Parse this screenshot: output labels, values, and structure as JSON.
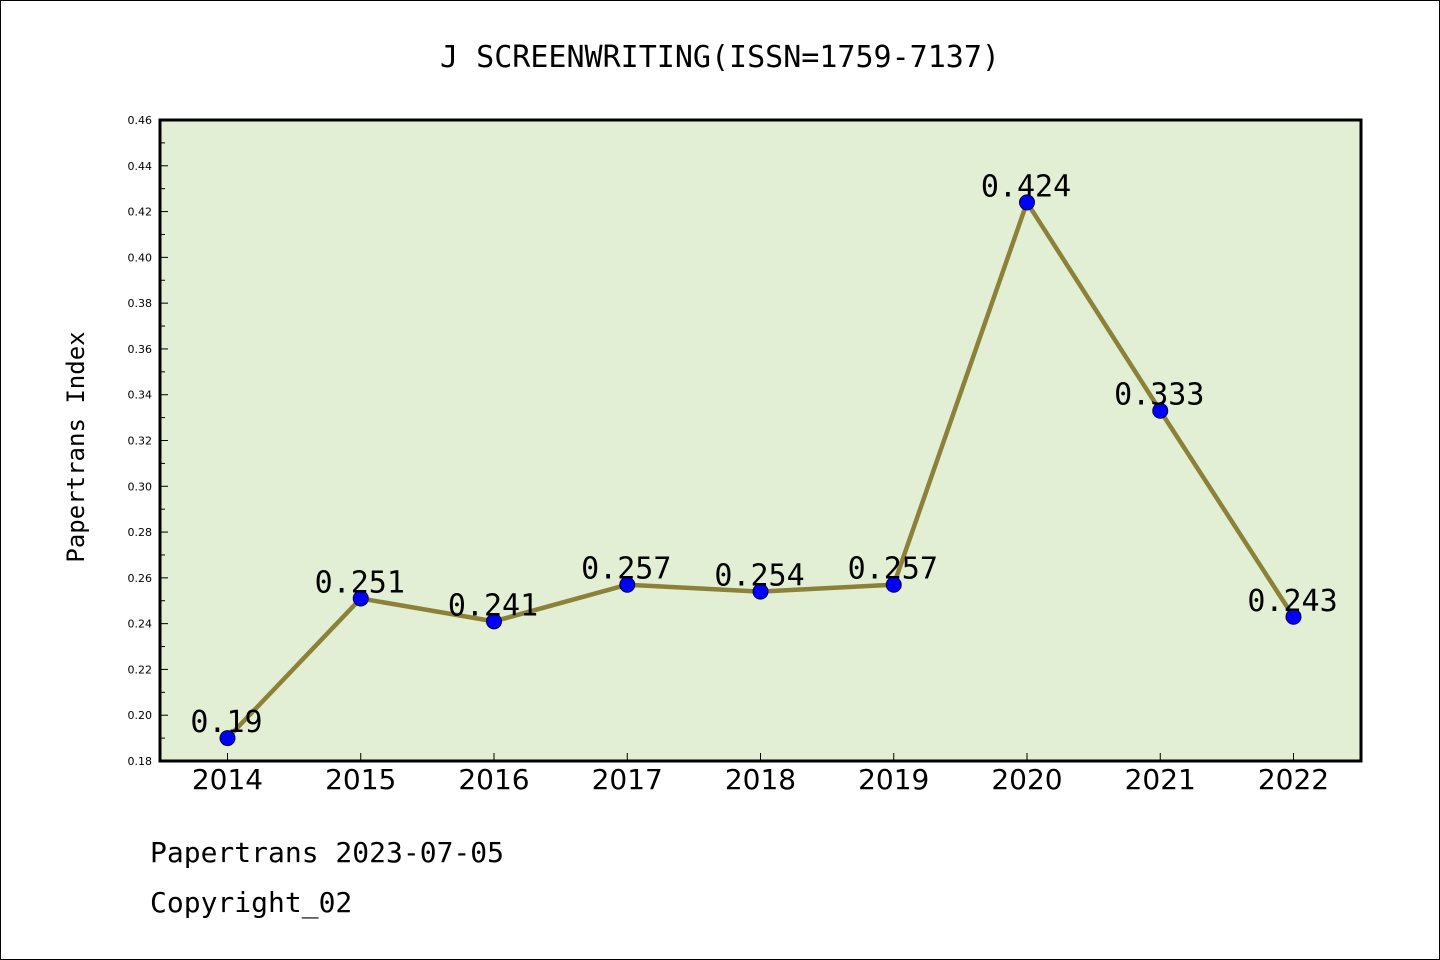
{
  "chart_data": {
    "type": "line",
    "title": "J SCREENWRITING(ISSN=1759-7137)",
    "xlabel": "",
    "ylabel": "Papertrans Index",
    "categories": [
      "2014",
      "2015",
      "2016",
      "2017",
      "2018",
      "2019",
      "2020",
      "2021",
      "2022"
    ],
    "series": [
      {
        "values": [
          0.19,
          0.251,
          0.241,
          0.257,
          0.254,
          0.257,
          0.424,
          0.333,
          0.243
        ]
      }
    ],
    "data_labels": [
      "0.19",
      "0.251",
      "0.241",
      "0.257",
      "0.254",
      "0.257",
      "0.424",
      "0.333",
      "0.243"
    ],
    "ylim": [
      0.18,
      0.46
    ],
    "yticks": [
      "0.18",
      "0.20",
      "0.22",
      "0.24",
      "0.26",
      "0.28",
      "0.30",
      "0.32",
      "0.34",
      "0.36",
      "0.38",
      "0.40",
      "0.42",
      "0.44",
      "0.46"
    ],
    "grid": false,
    "colors": {
      "plot_background": "#e2efd5",
      "line": "#8b8139",
      "marker": "#0000ff"
    }
  },
  "footer": {
    "date_line": "Papertrans 2023-07-05",
    "copyright_line": "Copyright_02"
  }
}
